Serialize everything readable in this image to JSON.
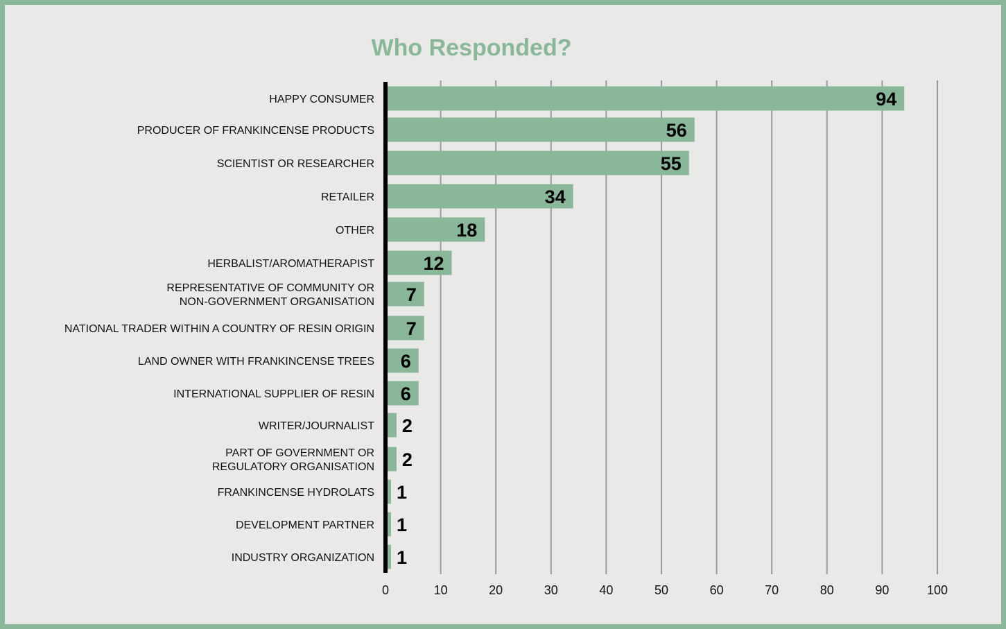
{
  "chart_data": {
    "type": "bar",
    "orientation": "horizontal",
    "title": "Who Responded?",
    "xlabel": "",
    "ylabel": "",
    "xlim": [
      0,
      100
    ],
    "ticks": [
      0,
      10,
      20,
      30,
      40,
      50,
      60,
      70,
      80,
      90,
      100
    ],
    "grid": true,
    "categories": [
      "HAPPY CONSUMER",
      "PRODUCER OF FRANKINCENSE PRODUCTS",
      "SCIENTIST OR RESEARCHER",
      "RETAILER",
      "OTHER",
      "HERBALIST/AROMATHERAPIST",
      "REPRESENTATIVE OF COMMUNITY OR NON-GOVERNMENT ORGANISATION",
      "NATIONAL TRADER WITHIN A COUNTRY OF RESIN ORIGIN",
      "LAND OWNER WITH FRANKINCENSE TREES",
      "INTERNATIONAL SUPPLIER OF RESIN",
      "WRITER/JOURNALIST",
      "PART OF GOVERNMENT OR REGULATORY ORGANISATION",
      "FRANKINCENSE HYDROLATS",
      "DEVELOPMENT PARTNER",
      "INDUSTRY ORGANIZATION"
    ],
    "label_lines": [
      [
        "HAPPY CONSUMER"
      ],
      [
        "PRODUCER OF FRANKINCENSE PRODUCTS"
      ],
      [
        "SCIENTIST OR RESEARCHER"
      ],
      [
        "RETAILER"
      ],
      [
        "OTHER"
      ],
      [
        "HERBALIST/AROMATHERAPIST"
      ],
      [
        "REPRESENTATIVE OF COMMUNITY OR",
        "NON-GOVERNMENT ORGANISATION"
      ],
      [
        "NATIONAL TRADER WITHIN A COUNTRY OF RESIN ORIGIN"
      ],
      [
        "LAND OWNER WITH FRANKINCENSE TREES"
      ],
      [
        "INTERNATIONAL SUPPLIER OF RESIN"
      ],
      [
        "WRITER/JOURNALIST"
      ],
      [
        "PART OF GOVERNMENT OR",
        "REGULATORY ORGANISATION"
      ],
      [
        "FRANKINCENSE HYDROLATS"
      ],
      [
        "DEVELOPMENT PARTNER"
      ],
      [
        "INDUSTRY ORGANIZATION"
      ]
    ],
    "values": [
      94,
      56,
      55,
      34,
      18,
      12,
      7,
      7,
      6,
      6,
      2,
      2,
      1,
      1,
      1
    ],
    "colors": {
      "bar": "#8ab79a",
      "title": "#8ab79a",
      "frame": "#8ab79a",
      "background": "#e9e9e7",
      "grid": "#9a9a9a",
      "axis": "#000000"
    }
  }
}
